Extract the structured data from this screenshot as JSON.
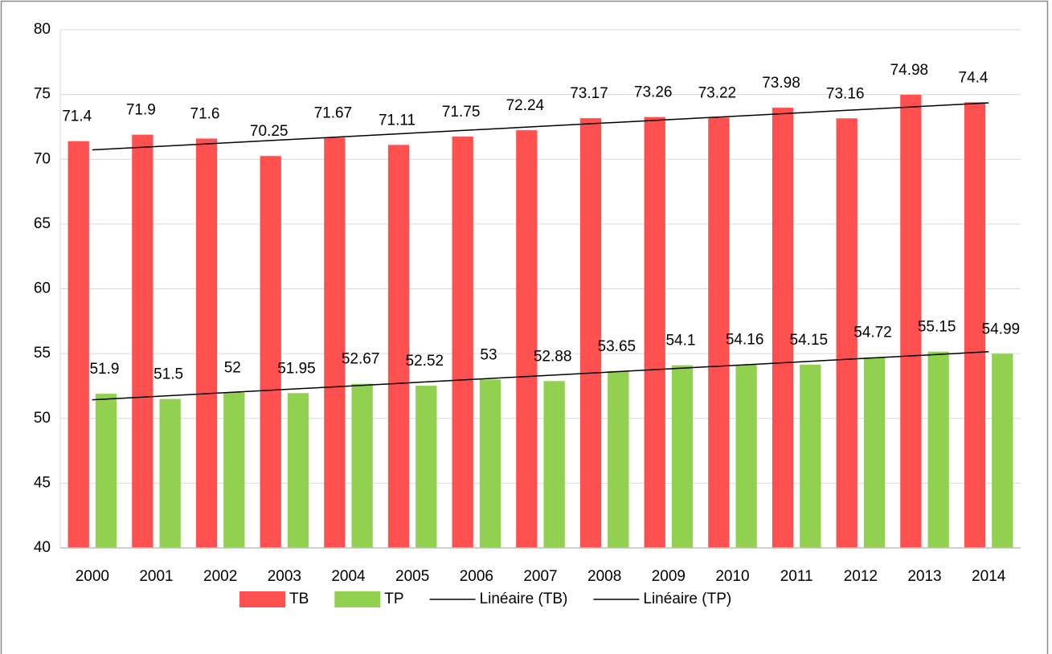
{
  "chart_data": {
    "type": "bar",
    "categories": [
      "2000",
      "2001",
      "2002",
      "2003",
      "2004",
      "2005",
      "2006",
      "2007",
      "2008",
      "2009",
      "2010",
      "2011",
      "2012",
      "2013",
      "2014"
    ],
    "series": [
      {
        "name": "TB",
        "color": "#ff5050",
        "values": [
          71.4,
          71.9,
          71.6,
          70.25,
          71.67,
          71.11,
          71.75,
          72.24,
          73.17,
          73.26,
          73.22,
          73.98,
          73.16,
          74.98,
          74.4
        ],
        "trendline": {
          "type": "linear",
          "name": "Linéaire (TB)",
          "color": "#000000"
        }
      },
      {
        "name": "TP",
        "color": "#92d050",
        "values": [
          51.9,
          51.5,
          52,
          51.95,
          52.67,
          52.52,
          53,
          52.88,
          53.65,
          54.1,
          54.16,
          54.15,
          54.72,
          55.15,
          54.99
        ],
        "trendline": {
          "type": "linear",
          "name": "Linéaire (TP)",
          "color": "#000000"
        }
      }
    ],
    "ylim": [
      40,
      80
    ],
    "yticks": [
      40,
      45,
      50,
      55,
      60,
      65,
      70,
      75,
      80
    ],
    "grid": true,
    "legend": "bottom",
    "data_labels": true
  }
}
